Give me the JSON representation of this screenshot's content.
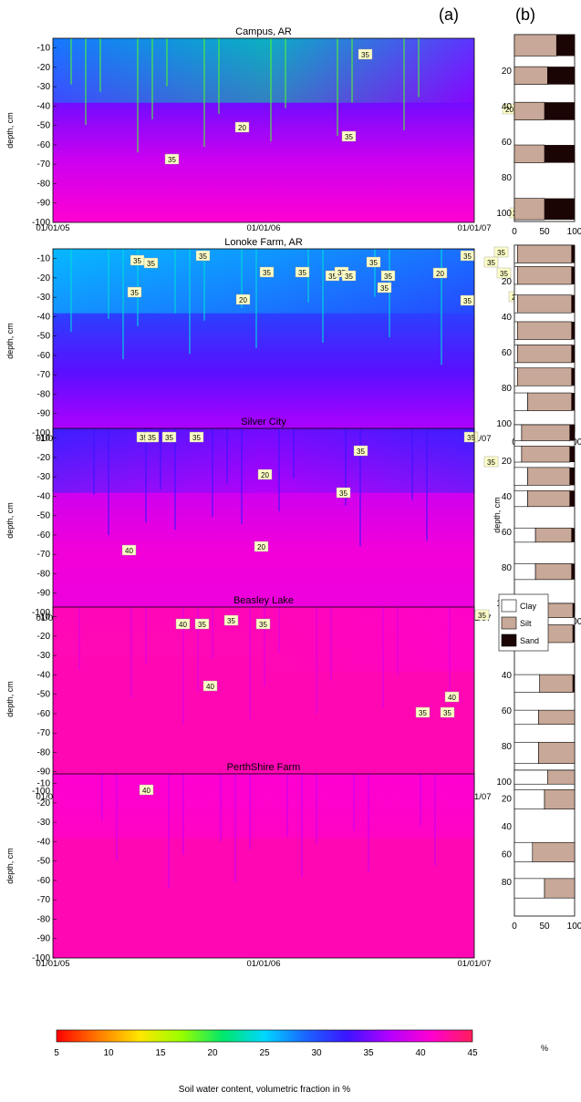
{
  "header": {
    "label_a": "(a)",
    "label_b": "(b)"
  },
  "chart_data": {
    "type": "heatmap",
    "description_units": "Soil water content, volumetric fraction in %",
    "colorbar": {
      "title": "Soil water content, volumetric fraction in %",
      "ticks": [
        "5",
        "10",
        "15",
        "20",
        "25",
        "30",
        "35",
        "40",
        "45"
      ],
      "range": [
        5,
        45
      ],
      "colors": [
        "#ff0000",
        "#ff7a00",
        "#ffe600",
        "#9aff00",
        "#00e86b",
        "#00d7ff",
        "#1a64ff",
        "#3c14ff",
        "#b400ff",
        "#ff00d2",
        "#ff1e5a"
      ]
    },
    "depth_axis": {
      "ylabel": "depth, cm",
      "ticks": [
        "-10",
        "-20",
        "-30",
        "-40",
        "-50",
        "-60",
        "-70",
        "-80",
        "-90",
        "-100"
      ]
    },
    "time_axis": {
      "ticks": [
        "01/01/05",
        "01/01/06",
        "01/01/07"
      ]
    },
    "texture_axis": {
      "x_ticks": [
        "0",
        "50",
        "100"
      ],
      "x_unit": "%",
      "depth_ticks": [
        "20",
        "40",
        "60",
        "80",
        "100"
      ],
      "depth_label": "depth, cm",
      "legend": [
        "Clay",
        "Silt",
        "Sand"
      ],
      "legend_colors": [
        "#ffffff",
        "#c8a898",
        "#1a0404"
      ]
    },
    "sites": [
      {
        "name": "Campus, AR",
        "moisture": [
          [
            28,
            22,
            36
          ],
          [
            36,
            30,
            38
          ],
          [
            40,
            36,
            39
          ],
          [
            42,
            40,
            41
          ]
        ],
        "contour_labels": [
          "35",
          "20",
          "35",
          "35",
          "20",
          "35",
          "35"
        ],
        "texture": [
          [
            0,
            12,
            70,
            30
          ],
          [
            18,
            28,
            55,
            45
          ],
          [
            38,
            48,
            50,
            50
          ],
          [
            62,
            72,
            50,
            50
          ],
          [
            92,
            104,
            50,
            50
          ]
        ]
      },
      {
        "name": "Lonoke Farm, AR",
        "moisture": [
          [
            25,
            27,
            30
          ],
          [
            30,
            33,
            29
          ],
          [
            35,
            36,
            31
          ],
          [
            38,
            41,
            32
          ]
        ],
        "contour_labels": [
          "35",
          "35",
          "35",
          "20",
          "35",
          "35",
          "35",
          "35",
          "35",
          "35",
          "35",
          "35",
          "20",
          "35",
          "35",
          "35",
          "35",
          "20",
          "35"
        ],
        "texture": [
          [
            0,
            10,
            90,
            5
          ],
          [
            12,
            22,
            90,
            5
          ],
          [
            28,
            38,
            90,
            5
          ],
          [
            43,
            53,
            90,
            5
          ],
          [
            56,
            66,
            90,
            5
          ],
          [
            69,
            79,
            90,
            5
          ],
          [
            83,
            93,
            73,
            5
          ]
        ]
      },
      {
        "name": "Silver City",
        "moisture": [
          [
            32,
            36,
            32
          ],
          [
            37,
            40,
            38
          ],
          [
            40,
            41,
            40
          ],
          [
            40,
            40,
            40
          ]
        ],
        "contour_labels": [
          "35",
          "35",
          "35",
          "35",
          "20",
          "20",
          "35",
          "35",
          "35",
          "35",
          "40",
          "35",
          "40",
          "40"
        ],
        "texture": [
          [
            0,
            9,
            80,
            8
          ],
          [
            12,
            21,
            80,
            8
          ],
          [
            24,
            34,
            70,
            8
          ],
          [
            37,
            46,
            70,
            8
          ],
          [
            58,
            66,
            60,
            5
          ],
          [
            78,
            87,
            60,
            5
          ]
        ]
      },
      {
        "name": "Beasley Lake",
        "moisture": [
          [
            42,
            42,
            41
          ],
          [
            42,
            42,
            42
          ],
          [
            42,
            42,
            42
          ],
          [
            42,
            42,
            42
          ]
        ],
        "contour_labels": [
          "40",
          "35",
          "35",
          "35",
          "40",
          "35",
          "35",
          "40",
          "35"
        ],
        "texture": [
          [
            0,
            8,
            60,
            3
          ],
          [
            12,
            22,
            60,
            3
          ],
          [
            40,
            50,
            55,
            3
          ],
          [
            60,
            68,
            60,
            0
          ],
          [
            78,
            90,
            60,
            0
          ],
          [
            96,
            100,
            60,
            0
          ]
        ]
      },
      {
        "name": "PerthShire Farm",
        "moisture": [
          [
            41,
            41,
            41
          ],
          [
            42,
            42,
            42
          ],
          [
            42,
            42,
            42
          ],
          [
            42,
            42,
            42
          ]
        ],
        "contour_labels": [
          "40"
        ],
        "texture": [
          [
            0,
            10,
            45,
            0
          ],
          [
            14,
            28,
            50,
            0
          ],
          [
            52,
            66,
            70,
            0
          ],
          [
            78,
            92,
            50,
            0
          ]
        ]
      }
    ]
  }
}
